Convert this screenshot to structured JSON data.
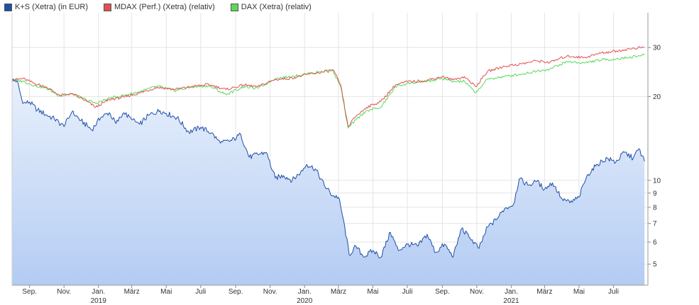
{
  "legend": [
    {
      "label": "K+S (Xetra) (in EUR)",
      "color": "#1f4ea8"
    },
    {
      "label": "MDAX (Perf.) (Xetra) (relativ)",
      "color": "#e05050"
    },
    {
      "label": "DAX (Xetra) (relativ)",
      "color": "#5ad85a"
    }
  ],
  "chart_data": {
    "type": "line",
    "y_scale": "log",
    "ylim": [
      4.2,
      40
    ],
    "y_ticks": [
      5,
      6,
      7,
      8,
      9,
      10,
      20,
      30
    ],
    "x_range": [
      "2018-08-01",
      "2021-08-31"
    ],
    "x_ticks": [
      {
        "label": "Sep.",
        "year": "",
        "date": "2018-09-01"
      },
      {
        "label": "Nov.",
        "year": "",
        "date": "2018-11-01"
      },
      {
        "label": "Jan.",
        "year": "2019",
        "date": "2019-01-01"
      },
      {
        "label": "März",
        "year": "",
        "date": "2019-03-01"
      },
      {
        "label": "Mai",
        "year": "",
        "date": "2019-05-01"
      },
      {
        "label": "Juli",
        "year": "",
        "date": "2019-07-01"
      },
      {
        "label": "Sep.",
        "year": "",
        "date": "2019-09-01"
      },
      {
        "label": "Nov.",
        "year": "",
        "date": "2019-11-01"
      },
      {
        "label": "Jan.",
        "year": "2020",
        "date": "2020-01-01"
      },
      {
        "label": "März",
        "year": "",
        "date": "2020-03-01"
      },
      {
        "label": "Mai",
        "year": "",
        "date": "2020-05-01"
      },
      {
        "label": "Juli",
        "year": "",
        "date": "2020-07-01"
      },
      {
        "label": "Sep.",
        "year": "",
        "date": "2020-09-01"
      },
      {
        "label": "Nov.",
        "year": "",
        "date": "2020-11-01"
      },
      {
        "label": "Jan.",
        "year": "2021",
        "date": "2021-01-01"
      },
      {
        "label": "März",
        "year": "",
        "date": "2021-03-01"
      },
      {
        "label": "Mai",
        "year": "",
        "date": "2021-05-01"
      },
      {
        "label": "Juli",
        "year": "",
        "date": "2021-07-01"
      }
    ],
    "series": [
      {
        "name": "K+S (Xetra) (in EUR)",
        "color": "#1f4ea8",
        "fill": true,
        "points": [
          [
            "2018-08-01",
            22.9
          ],
          [
            "2018-08-10",
            22.8
          ],
          [
            "2018-08-20",
            18.9
          ],
          [
            "2018-09-01",
            19.1
          ],
          [
            "2018-09-15",
            17.9
          ],
          [
            "2018-10-01",
            17.2
          ],
          [
            "2018-10-15",
            16.6
          ],
          [
            "2018-11-01",
            15.6
          ],
          [
            "2018-11-15",
            17.6
          ],
          [
            "2018-12-01",
            16.4
          ],
          [
            "2018-12-20",
            15.2
          ],
          [
            "2019-01-05",
            16.8
          ],
          [
            "2019-01-20",
            17.5
          ],
          [
            "2019-02-01",
            16.0
          ],
          [
            "2019-02-15",
            17.5
          ],
          [
            "2019-03-01",
            16.5
          ],
          [
            "2019-03-15",
            15.9
          ],
          [
            "2019-04-01",
            17.2
          ],
          [
            "2019-04-20",
            17.8
          ],
          [
            "2019-05-01",
            17.4
          ],
          [
            "2019-05-20",
            16.8
          ],
          [
            "2019-06-10",
            14.9
          ],
          [
            "2019-07-01",
            15.5
          ],
          [
            "2019-07-20",
            14.8
          ],
          [
            "2019-08-05",
            13.6
          ],
          [
            "2019-08-25",
            13.9
          ],
          [
            "2019-09-10",
            14.6
          ],
          [
            "2019-09-25",
            12.1
          ],
          [
            "2019-10-10",
            12.4
          ],
          [
            "2019-10-25",
            12.6
          ],
          [
            "2019-11-10",
            10.2
          ],
          [
            "2019-11-25",
            10.4
          ],
          [
            "2019-12-10",
            10.0
          ],
          [
            "2019-12-25",
            10.7
          ],
          [
            "2020-01-05",
            11.4
          ],
          [
            "2020-01-20",
            11.0
          ],
          [
            "2020-02-05",
            9.6
          ],
          [
            "2020-02-20",
            8.8
          ],
          [
            "2020-03-01",
            8.7
          ],
          [
            "2020-03-10",
            7.2
          ],
          [
            "2020-03-20",
            5.4
          ],
          [
            "2020-04-01",
            5.8
          ],
          [
            "2020-04-15",
            5.3
          ],
          [
            "2020-05-01",
            5.6
          ],
          [
            "2020-05-15",
            5.3
          ],
          [
            "2020-06-01",
            6.5
          ],
          [
            "2020-06-15",
            5.6
          ],
          [
            "2020-07-01",
            5.9
          ],
          [
            "2020-07-20",
            5.8
          ],
          [
            "2020-08-05",
            6.4
          ],
          [
            "2020-08-20",
            5.5
          ],
          [
            "2020-09-05",
            5.9
          ],
          [
            "2020-09-20",
            5.3
          ],
          [
            "2020-10-05",
            6.7
          ],
          [
            "2020-10-20",
            6.2
          ],
          [
            "2020-11-05",
            5.7
          ],
          [
            "2020-11-20",
            6.8
          ],
          [
            "2020-12-05",
            7.2
          ],
          [
            "2020-12-20",
            7.9
          ],
          [
            "2021-01-05",
            8.2
          ],
          [
            "2021-01-15",
            10.1
          ],
          [
            "2021-02-01",
            9.6
          ],
          [
            "2021-02-15",
            9.9
          ],
          [
            "2021-03-01",
            9.3
          ],
          [
            "2021-03-15",
            9.8
          ],
          [
            "2021-04-01",
            8.6
          ],
          [
            "2021-04-15",
            8.3
          ],
          [
            "2021-05-01",
            8.7
          ],
          [
            "2021-05-15",
            10.4
          ],
          [
            "2021-06-01",
            11.4
          ],
          [
            "2021-06-20",
            12.0
          ],
          [
            "2021-07-05",
            11.6
          ],
          [
            "2021-07-20",
            12.6
          ],
          [
            "2021-08-05",
            12.0
          ],
          [
            "2021-08-15",
            13.0
          ],
          [
            "2021-08-25",
            11.7
          ]
        ]
      },
      {
        "name": "MDAX (Perf.) (Xetra) (relativ)",
        "color": "#e05050",
        "fill": false,
        "points": [
          [
            "2018-08-01",
            22.9
          ],
          [
            "2018-08-20",
            23.2
          ],
          [
            "2018-09-10",
            22.3
          ],
          [
            "2018-10-01",
            21.6
          ],
          [
            "2018-10-25",
            20.2
          ],
          [
            "2018-11-15",
            20.5
          ],
          [
            "2018-12-10",
            19.3
          ],
          [
            "2018-12-27",
            18.3
          ],
          [
            "2019-01-20",
            19.5
          ],
          [
            "2019-02-15",
            19.9
          ],
          [
            "2019-03-15",
            20.6
          ],
          [
            "2019-04-15",
            21.6
          ],
          [
            "2019-05-15",
            21.2
          ],
          [
            "2019-06-15",
            21.7
          ],
          [
            "2019-07-15",
            22.1
          ],
          [
            "2019-08-15",
            21.2
          ],
          [
            "2019-09-15",
            22.0
          ],
          [
            "2019-10-10",
            21.7
          ],
          [
            "2019-11-10",
            23.0
          ],
          [
            "2019-12-10",
            23.3
          ],
          [
            "2020-01-10",
            24.1
          ],
          [
            "2020-02-10",
            24.6
          ],
          [
            "2020-02-20",
            25.0
          ],
          [
            "2020-03-05",
            22.0
          ],
          [
            "2020-03-18",
            15.6
          ],
          [
            "2020-04-01",
            17.0
          ],
          [
            "2020-04-20",
            18.3
          ],
          [
            "2020-05-15",
            19.2
          ],
          [
            "2020-06-10",
            22.0
          ],
          [
            "2020-07-01",
            22.6
          ],
          [
            "2020-08-01",
            22.8
          ],
          [
            "2020-09-01",
            23.6
          ],
          [
            "2020-09-20",
            22.9
          ],
          [
            "2020-10-10",
            23.6
          ],
          [
            "2020-10-30",
            21.7
          ],
          [
            "2020-11-20",
            24.6
          ],
          [
            "2020-12-20",
            25.7
          ],
          [
            "2021-01-20",
            26.2
          ],
          [
            "2021-02-15",
            26.9
          ],
          [
            "2021-03-10",
            26.5
          ],
          [
            "2021-04-10",
            28.0
          ],
          [
            "2021-05-10",
            27.6
          ],
          [
            "2021-06-10",
            28.7
          ],
          [
            "2021-07-10",
            29.2
          ],
          [
            "2021-07-25",
            29.6
          ],
          [
            "2021-08-25",
            30.1
          ]
        ]
      },
      {
        "name": "DAX (Xetra) (relativ)",
        "color": "#5ad85a",
        "fill": false,
        "points": [
          [
            "2018-08-01",
            22.9
          ],
          [
            "2018-08-20",
            22.7
          ],
          [
            "2018-09-10",
            21.9
          ],
          [
            "2018-10-01",
            21.4
          ],
          [
            "2018-10-25",
            20.1
          ],
          [
            "2018-11-15",
            20.4
          ],
          [
            "2018-12-10",
            19.5
          ],
          [
            "2018-12-27",
            18.9
          ],
          [
            "2019-01-20",
            19.7
          ],
          [
            "2019-02-15",
            20.2
          ],
          [
            "2019-03-15",
            20.8
          ],
          [
            "2019-04-15",
            21.8
          ],
          [
            "2019-05-15",
            21.0
          ],
          [
            "2019-06-15",
            21.6
          ],
          [
            "2019-07-15",
            21.9
          ],
          [
            "2019-08-15",
            20.3
          ],
          [
            "2019-09-15",
            21.7
          ],
          [
            "2019-10-10",
            21.4
          ],
          [
            "2019-11-10",
            23.2
          ],
          [
            "2019-12-10",
            23.6
          ],
          [
            "2020-01-10",
            24.2
          ],
          [
            "2020-02-10",
            24.8
          ],
          [
            "2020-02-20",
            24.9
          ],
          [
            "2020-03-05",
            21.7
          ],
          [
            "2020-03-18",
            15.4
          ],
          [
            "2020-04-01",
            16.5
          ],
          [
            "2020-04-20",
            17.8
          ],
          [
            "2020-05-15",
            18.3
          ],
          [
            "2020-06-10",
            21.7
          ],
          [
            "2020-07-01",
            22.3
          ],
          [
            "2020-08-01",
            22.6
          ],
          [
            "2020-09-01",
            23.2
          ],
          [
            "2020-09-20",
            22.6
          ],
          [
            "2020-10-10",
            22.7
          ],
          [
            "2020-10-30",
            20.6
          ],
          [
            "2020-11-20",
            23.1
          ],
          [
            "2020-12-20",
            23.6
          ],
          [
            "2021-01-20",
            24.1
          ],
          [
            "2021-02-15",
            24.7
          ],
          [
            "2021-03-10",
            25.1
          ],
          [
            "2021-04-10",
            26.7
          ],
          [
            "2021-05-10",
            26.4
          ],
          [
            "2021-06-10",
            27.1
          ],
          [
            "2021-07-10",
            27.3
          ],
          [
            "2021-07-25",
            27.6
          ],
          [
            "2021-08-25",
            28.2
          ]
        ]
      }
    ]
  }
}
